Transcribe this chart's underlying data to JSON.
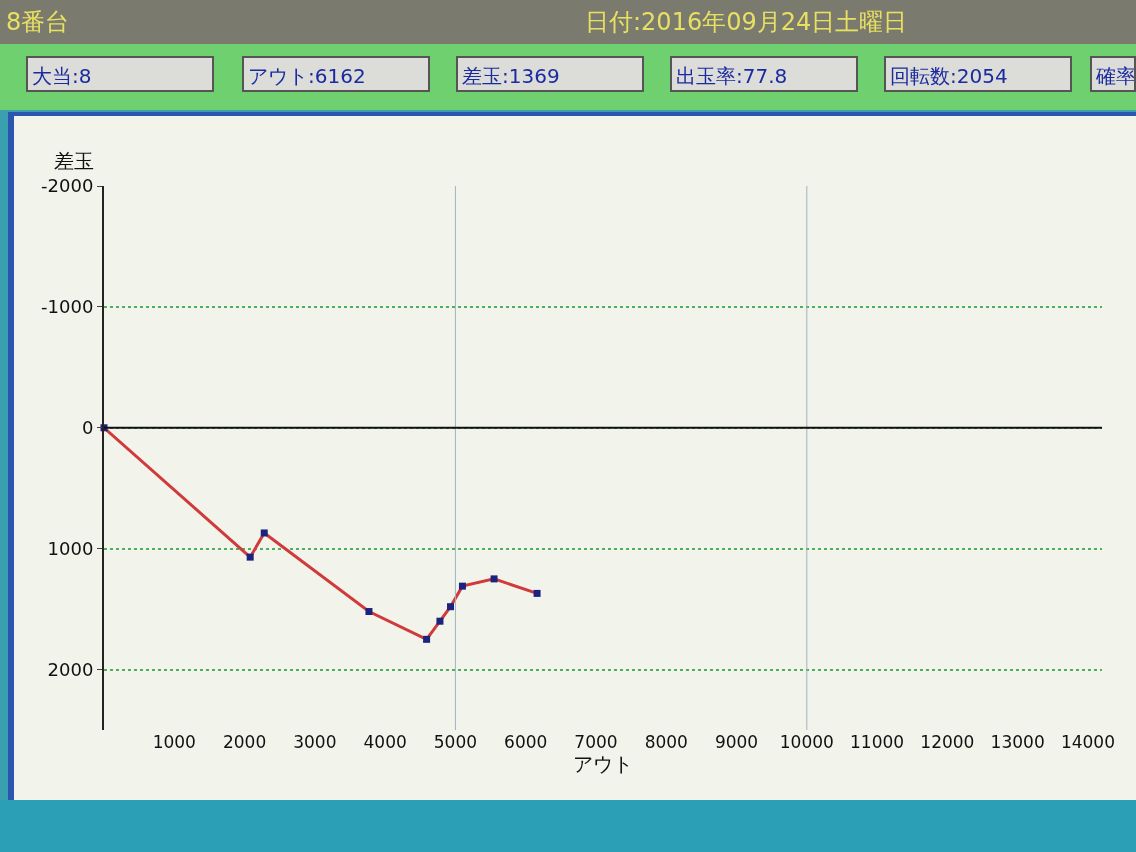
{
  "chart_data": {
    "type": "line",
    "title": "8番台",
    "subtitle": "日付:2016年09月24日土曜日",
    "annotations": [
      "大当:8",
      "アウト:6162",
      "差玉:1369",
      "出玉率:77.8",
      "回転数:2054",
      "確率"
    ],
    "xlabel": "アウト",
    "ylabel": "差玉",
    "x": [
      0,
      2080,
      2280,
      3770,
      4590,
      4780,
      4930,
      5100,
      5550,
      6162
    ],
    "series": [
      {
        "color": "#d03a3a",
        "values": [
          0,
          1070,
          870,
          1520,
          1750,
          1600,
          1480,
          1310,
          1250,
          1370
        ]
      }
    ],
    "xlim": [
      0,
      14200
    ],
    "xticks": [
      1000,
      2000,
      3000,
      4000,
      5000,
      6000,
      7000,
      8000,
      9000,
      10000,
      11000,
      12000,
      13000,
      14000
    ],
    "ylim": [
      2500,
      -2000
    ],
    "yticks": [
      -2000,
      -1000,
      0,
      1000,
      2000
    ],
    "ref_lines": [
      {
        "axis": "x",
        "value": 5000,
        "color": "#9fb4c0"
      },
      {
        "axis": "x",
        "value": 10000,
        "color": "#9fb4c0"
      },
      {
        "axis": "y",
        "value": 0,
        "color": "#111111"
      }
    ],
    "grid": "y",
    "marker": "square",
    "line_style": "solid"
  }
}
